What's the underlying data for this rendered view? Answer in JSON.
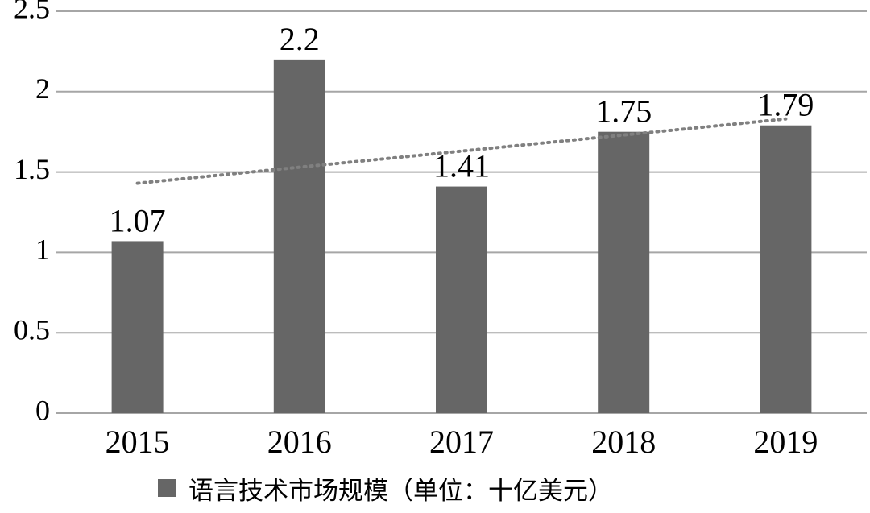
{
  "chart_data": {
    "type": "bar",
    "categories": [
      "2015",
      "2016",
      "2017",
      "2018",
      "2019"
    ],
    "series": [
      {
        "name": "语言技术市场规模（单位：十亿美元）",
        "values": [
          1.07,
          2.2,
          1.41,
          1.75,
          1.79
        ],
        "data_labels": [
          "1.07",
          "2.2",
          "1.41",
          "1.75",
          "1.79"
        ]
      }
    ],
    "trendline": {
      "type": "linear",
      "style": "dotted",
      "start": 1.43,
      "end": 1.83
    },
    "title": "",
    "xlabel": "",
    "ylabel": "",
    "ylim": [
      0,
      2.5
    ],
    "yticks": [
      "0",
      "0.5",
      "1",
      "1.5",
      "2",
      "2.5"
    ],
    "grid": true,
    "legend_position": "bottom",
    "colors": {
      "bar": "#666666",
      "grid": "#a6a6a6",
      "trendline": "#808080",
      "text": "#000000"
    }
  }
}
